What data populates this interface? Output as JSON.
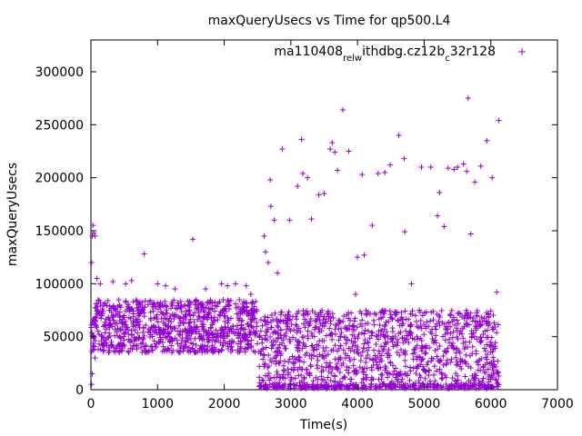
{
  "chart_data": {
    "type": "scatter",
    "title": "maxQueryUsecs vs Time for qp500.L4",
    "xlabel": "Time(s)",
    "ylabel": "maxQueryUsecs",
    "xlim": [
      0,
      7000
    ],
    "ylim": [
      0,
      330000
    ],
    "x_ticks": [
      "0",
      "1000",
      "2000",
      "3000",
      "4000",
      "5000",
      "6000",
      "7000"
    ],
    "y_ticks": [
      "0",
      "50000",
      "100000",
      "150000",
      "200000",
      "250000",
      "300000"
    ],
    "grid": false,
    "legend_position": "top-right",
    "marker": "+",
    "series": [
      {
        "name": "ma110408_rel_withdbg.cz12b_c32r128",
        "name_parts": [
          {
            "text": "ma110408",
            "sub": false
          },
          {
            "text": "rel",
            "sub": true
          },
          {
            "text": "w",
            "sub": true
          },
          {
            "text": "ithdbg.cz12b",
            "sub": false
          },
          {
            "text": "c",
            "sub": true
          },
          {
            "text": "32r128",
            "sub": false
          }
        ],
        "color": "#9400d3",
        "dense_bands": [
          {
            "x_range": [
              0,
              2500
            ],
            "y_range": [
              35000,
              85000
            ],
            "count": 900
          },
          {
            "x_range": [
              2520,
              6120
            ],
            "y_range": [
              2000,
              75000
            ],
            "count": 1100
          },
          {
            "x_range": [
              2520,
              6120
            ],
            "y_range": [
              1000,
              5000
            ],
            "count": 250
          }
        ],
        "points": [
          [
            30,
            155000
          ],
          [
            40,
            148000
          ],
          [
            20,
            145000
          ],
          [
            60,
            145000
          ],
          [
            10,
            120000
          ],
          [
            90,
            105000
          ],
          [
            140,
            100000
          ],
          [
            330,
            102000
          ],
          [
            520,
            100000
          ],
          [
            610,
            103000
          ],
          [
            800,
            128000
          ],
          [
            1000,
            100000
          ],
          [
            1120,
            98000
          ],
          [
            1260,
            95000
          ],
          [
            1530,
            142000
          ],
          [
            1720,
            95000
          ],
          [
            1960,
            100000
          ],
          [
            2050,
            98000
          ],
          [
            2170,
            100000
          ],
          [
            2330,
            98000
          ],
          [
            2400,
            90000
          ],
          [
            10,
            5000
          ],
          [
            20,
            15000
          ],
          [
            60,
            30000
          ],
          [
            2600,
            145000
          ],
          [
            2620,
            130000
          ],
          [
            2660,
            120000
          ],
          [
            2690,
            198000
          ],
          [
            2700,
            173000
          ],
          [
            2750,
            160000
          ],
          [
            2800,
            110000
          ],
          [
            2870,
            227000
          ],
          [
            2980,
            160000
          ],
          [
            3100,
            192000
          ],
          [
            3160,
            236000
          ],
          [
            3180,
            204000
          ],
          [
            3250,
            200000
          ],
          [
            3310,
            161000
          ],
          [
            3420,
            184000
          ],
          [
            3500,
            185000
          ],
          [
            3590,
            227000
          ],
          [
            3620,
            233000
          ],
          [
            3660,
            224000
          ],
          [
            3700,
            207000
          ],
          [
            3780,
            264000
          ],
          [
            3870,
            225000
          ],
          [
            3970,
            90000
          ],
          [
            4000,
            125000
          ],
          [
            4070,
            203000
          ],
          [
            4100,
            127000
          ],
          [
            4220,
            155000
          ],
          [
            4310,
            204000
          ],
          [
            4410,
            205000
          ],
          [
            4490,
            212000
          ],
          [
            4620,
            240000
          ],
          [
            4700,
            218000
          ],
          [
            4710,
            149000
          ],
          [
            4810,
            100000
          ],
          [
            4960,
            210000
          ],
          [
            5100,
            210000
          ],
          [
            5200,
            164000
          ],
          [
            5230,
            186000
          ],
          [
            5300,
            154000
          ],
          [
            5360,
            209000
          ],
          [
            5450,
            208000
          ],
          [
            5500,
            210000
          ],
          [
            5590,
            213000
          ],
          [
            5640,
            206000
          ],
          [
            5660,
            275000
          ],
          [
            5700,
            147000
          ],
          [
            5760,
            196000
          ],
          [
            5850,
            211000
          ],
          [
            5940,
            235000
          ],
          [
            6020,
            200000
          ],
          [
            6090,
            92000
          ],
          [
            6120,
            254000
          ]
        ]
      }
    ]
  }
}
